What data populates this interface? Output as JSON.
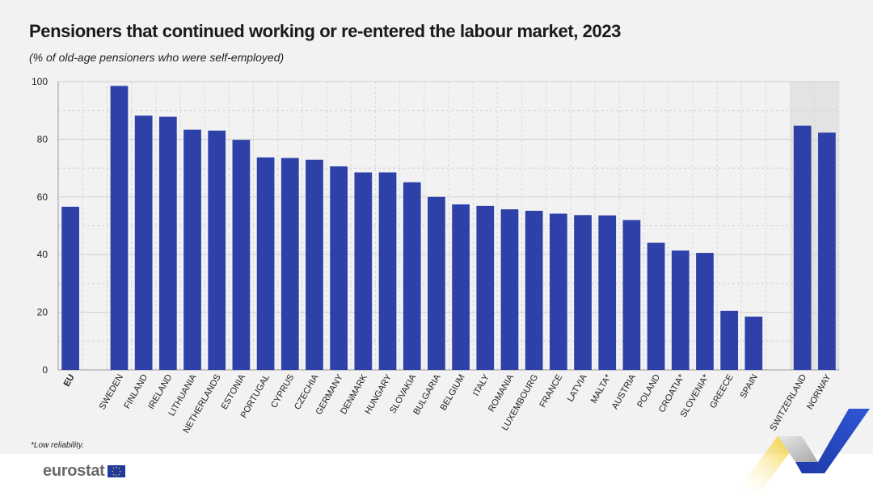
{
  "header": {
    "title": "Pensioners that continued working or re-entered the labour market, 2023",
    "subtitle": "(% of old-age pensioners who were self-employed)"
  },
  "footnote": "*Low reliability.",
  "logo": {
    "text": "eurostat",
    "flag_icon": "eu-flag-icon"
  },
  "colors": {
    "bar": "#2e41a8",
    "panel": "#f2f2f2",
    "highlight": "#e3e3e3",
    "grid": "#cfcfcf"
  },
  "chart_data": {
    "type": "bar",
    "title": "Pensioners that continued working or re-entered the labour market, 2023",
    "subtitle": "(% of old-age pensioners who were self-employed)",
    "xlabel": "",
    "ylabel": "",
    "ylim": [
      0,
      100
    ],
    "yticks": [
      0,
      20,
      40,
      60,
      80,
      100
    ],
    "grid": true,
    "categories": [
      "EU",
      "SWEDEN",
      "FINLAND",
      "IRELAND",
      "LITHUANIA",
      "NETHERLANDS",
      "ESTONIA",
      "PORTUGAL",
      "CYPRUS",
      "CZECHIA",
      "GERMANY",
      "DENMARK",
      "HUNGARY",
      "SLOVAKIA",
      "BULGARIA",
      "BELGIUM",
      "ITALY",
      "ROMANIA",
      "LUXEMBOURG",
      "FRANCE",
      "LATVIA",
      "MALTA*",
      "AUSTRIA",
      "POLAND",
      "CROATIA*",
      "SLOVENIA*",
      "GREECE",
      "SPAIN",
      "SWITZERLAND",
      "NORWAY"
    ],
    "values": [
      56.6,
      98.5,
      88.2,
      87.8,
      83.3,
      83.0,
      79.8,
      73.7,
      73.5,
      72.9,
      70.6,
      68.5,
      68.5,
      65.1,
      60.0,
      57.4,
      56.9,
      55.7,
      55.2,
      54.2,
      53.7,
      53.6,
      52.0,
      44.1,
      41.4,
      40.6,
      20.5,
      18.5,
      84.7,
      82.3
    ],
    "groups": [
      "eu",
      "member",
      "member",
      "member",
      "member",
      "member",
      "member",
      "member",
      "member",
      "member",
      "member",
      "member",
      "member",
      "member",
      "member",
      "member",
      "member",
      "member",
      "member",
      "member",
      "member",
      "member",
      "member",
      "member",
      "member",
      "member",
      "member",
      "member",
      "efta",
      "efta"
    ]
  }
}
